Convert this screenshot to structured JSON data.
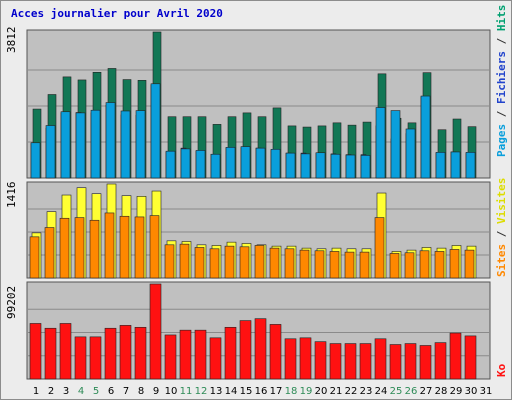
{
  "title": "Acces journalier pour Avril 2020",
  "colors": {
    "pages": "#0a9fdc",
    "hits": "#00a070",
    "hits_dark": "#117755",
    "fichiers": "#2244cc",
    "visites": "#ffff33",
    "sites": "#ff8800",
    "ko": "#ff1111",
    "weekend_label": "#2e8b57",
    "panel_bg": "#c0c0c0",
    "gridline": "#8a8a8a"
  },
  "chart_data": [
    {
      "type": "bar",
      "categories": [
        "1",
        "2",
        "3",
        "4",
        "5",
        "6",
        "7",
        "8",
        "9",
        "10",
        "11",
        "12",
        "13",
        "14",
        "15",
        "16",
        "17",
        "18",
        "19",
        "20",
        "21",
        "22",
        "23",
        "24",
        "25",
        "26",
        "27",
        "28",
        "29",
        "30",
        "31"
      ],
      "weekend_days": [
        "4",
        "5",
        "11",
        "12",
        "18",
        "19",
        "25",
        "26"
      ],
      "y_max_label": "3812",
      "ylim": [
        0,
        3812
      ],
      "right_label": {
        "pages": "Pages",
        "fichiers": "Fichiers",
        "hits": "Hits",
        "sep": " / "
      },
      "series": [
        {
          "name": "Hits",
          "values": [
            1800,
            2180,
            2640,
            2560,
            2760,
            2860,
            2570,
            2550,
            3812,
            1600,
            1600,
            1600,
            1400,
            1600,
            1700,
            1600,
            1830,
            1360,
            1330,
            1360,
            1440,
            1380,
            1460,
            2720,
            1560,
            1440,
            2750,
            1260,
            1540,
            1340,
            0
          ]
        },
        {
          "name": "Fichiers",
          "values": [
            900,
            1300,
            1700,
            1710,
            1700,
            1900,
            1650,
            1640,
            2430,
            680,
            780,
            700,
            620,
            790,
            790,
            780,
            720,
            650,
            650,
            650,
            630,
            610,
            610,
            1360,
            1020,
            1160,
            2120,
            650,
            680,
            640,
            0
          ]
        },
        {
          "name": "Pages",
          "values": [
            920,
            1370,
            1730,
            1700,
            1770,
            1970,
            1750,
            1760,
            2460,
            700,
            760,
            720,
            620,
            800,
            820,
            780,
            750,
            650,
            630,
            660,
            620,
            600,
            590,
            1840,
            1760,
            1280,
            2140,
            670,
            680,
            670,
            0
          ]
        }
      ]
    },
    {
      "type": "bar",
      "categories": [
        "1",
        "2",
        "3",
        "4",
        "5",
        "6",
        "7",
        "8",
        "9",
        "10",
        "11",
        "12",
        "13",
        "14",
        "15",
        "16",
        "17",
        "18",
        "19",
        "20",
        "21",
        "22",
        "23",
        "24",
        "25",
        "26",
        "27",
        "28",
        "29",
        "30",
        "31"
      ],
      "y_max_label": "1416",
      "ylim": [
        0,
        1416
      ],
      "right_label": {
        "sites": "Sites",
        "visites": "Visites",
        "sep": " / "
      },
      "series": [
        {
          "name": "Visites",
          "values": [
            680,
            1000,
            1250,
            1360,
            1270,
            1416,
            1240,
            1230,
            1310,
            560,
            550,
            500,
            490,
            540,
            520,
            500,
            480,
            480,
            450,
            440,
            450,
            440,
            440,
            1280,
            400,
            420,
            460,
            450,
            490,
            480,
            0
          ]
        },
        {
          "name": "Sites",
          "values": [
            620,
            760,
            900,
            910,
            870,
            980,
            930,
            920,
            940,
            500,
            510,
            460,
            440,
            480,
            470,
            490,
            450,
            440,
            420,
            410,
            400,
            390,
            390,
            910,
            370,
            380,
            410,
            400,
            430,
            420,
            0
          ]
        }
      ]
    },
    {
      "type": "bar",
      "categories": [
        "1",
        "2",
        "3",
        "4",
        "5",
        "6",
        "7",
        "8",
        "9",
        "10",
        "11",
        "12",
        "13",
        "14",
        "15",
        "16",
        "17",
        "18",
        "19",
        "20",
        "21",
        "22",
        "23",
        "24",
        "25",
        "26",
        "27",
        "28",
        "29",
        "30",
        "31"
      ],
      "y_max_label": "99202",
      "ylim": [
        0,
        99202
      ],
      "right_label": {
        "ko": "Ko"
      },
      "series": [
        {
          "name": "Ko",
          "values": [
            58000,
            53000,
            58000,
            44000,
            44000,
            53000,
            56000,
            54000,
            99202,
            46000,
            51000,
            51000,
            43000,
            54000,
            61000,
            63000,
            57000,
            42000,
            43000,
            39000,
            37000,
            37000,
            37000,
            42000,
            36000,
            37000,
            35000,
            38000,
            48000,
            45000,
            0
          ]
        }
      ]
    }
  ]
}
